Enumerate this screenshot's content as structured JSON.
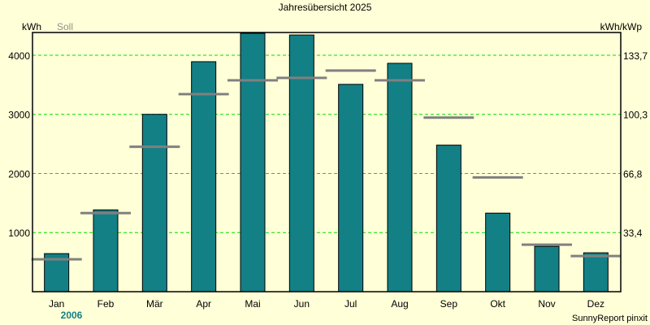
{
  "chart_data": {
    "type": "bar",
    "title": "Jahresübersicht 2025",
    "ylabel": "kWh",
    "ylabel_right": "kWh/kWp",
    "legend_soll": "Soll",
    "year_label": "2006",
    "footer": "SunnyReport pinxit",
    "ylim": [
      0,
      4384
    ],
    "yticks": [
      1000,
      2000,
      3000,
      4000
    ],
    "yticks_right": [
      "33,4",
      "66,8",
      "100,3",
      "133,7"
    ],
    "categories": [
      "Jan",
      "Feb",
      "Mär",
      "Apr",
      "Mai",
      "Jun",
      "Jul",
      "Aug",
      "Sep",
      "Okt",
      "Nov",
      "Dez"
    ],
    "series": [
      {
        "name": "kWh",
        "values": [
          644,
          1384,
          3000,
          3890,
          4370,
          4342,
          3507,
          3863,
          2479,
          1329,
          767,
          658
        ]
      },
      {
        "name": "Soll",
        "values": [
          548,
          1329,
          2452,
          3342,
          3575,
          3616,
          3740,
          3575,
          2945,
          1932,
          795,
          603
        ]
      }
    ],
    "grid": true,
    "colors": {
      "bar": "#138086",
      "soll": "#808080",
      "grid": "#00e000",
      "background": "#ffffd8",
      "year": "#138086"
    }
  }
}
